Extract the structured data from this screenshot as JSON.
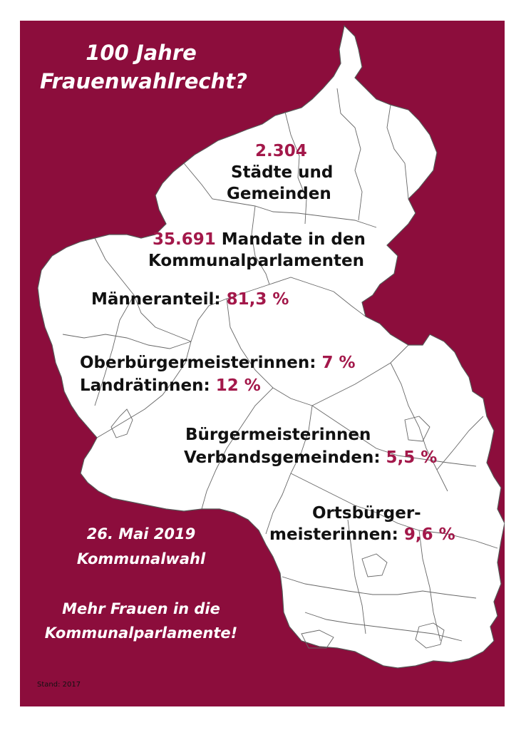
{
  "title": {
    "line1": "100 Jahre",
    "line2": "Frauenwahlrecht?"
  },
  "stats": {
    "staedte": {
      "number": "2.304",
      "line1": "Städte und",
      "line2": "Gemeinden"
    },
    "mandate": {
      "number": "35.691",
      "text": "Mandate in den",
      "line2": "Kommunalparlamenten"
    },
    "maenner": {
      "label": "Männeranteil:",
      "value": "81,3 %"
    },
    "ob": {
      "label": "Oberbürgermeisterinnen:",
      "value": "7 %"
    },
    "landraete": {
      "label": "Landrätinnen:",
      "value": "12 %"
    },
    "bgm": {
      "line1": "Bürgermeisterinnen",
      "label": "Verbandsgemeinden:",
      "value": "5,5 %"
    },
    "orts": {
      "line1": "Ortsbürger-",
      "label": "meisterinnen:",
      "value": "9,6 %"
    }
  },
  "election": {
    "date": "26. Mai 2019",
    "name": "Kommunalwahl"
  },
  "slogan": {
    "line1": "Mehr Frauen in die",
    "line2": "Kommunalparlamente!"
  },
  "footnote": "Stand: 2017",
  "colors": {
    "background": "#8c0d3c",
    "accent": "#a3184a",
    "map": "#ffffff",
    "text": "#111111"
  }
}
